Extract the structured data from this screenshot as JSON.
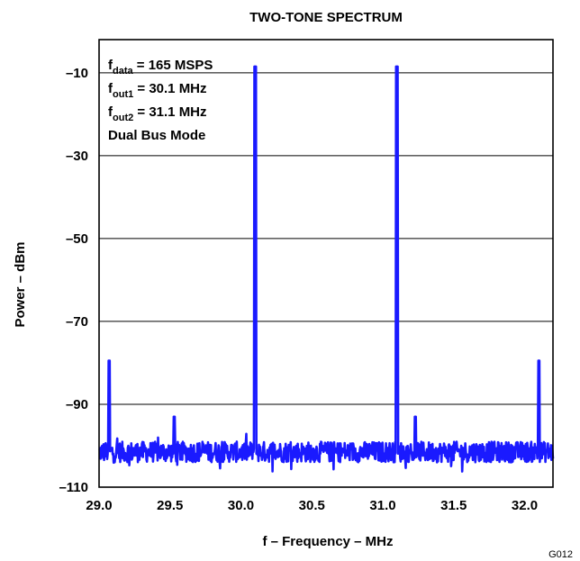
{
  "chart_data": {
    "type": "line",
    "title": "TWO-TONE SPECTRUM",
    "xlabel": "f – Frequency – MHz",
    "ylabel": "Power – dBm",
    "figure_id": "G012",
    "xlim": [
      29.0,
      32.2
    ],
    "ylim": [
      -110,
      -2
    ],
    "x_ticks": [
      29.0,
      29.5,
      30.0,
      30.5,
      31.0,
      31.5,
      32.0
    ],
    "x_tick_labels": [
      "29.0",
      "29.5",
      "30.0",
      "30.5",
      "31.0",
      "31.5",
      "32.0"
    ],
    "y_ticks": [
      -10,
      -30,
      -50,
      -70,
      -90,
      -110
    ],
    "y_tick_labels": [
      "–10",
      "–30",
      "–50",
      "–70",
      "–90",
      "–110"
    ],
    "grid": {
      "horizontal": true,
      "vertical": false
    },
    "line_color": "#1a1aff",
    "annotations": [
      {
        "main": "f",
        "sub": "data",
        "rest": " = 165 MSPS"
      },
      {
        "main": "f",
        "sub": "out1",
        "rest": " = 30.1 MHz"
      },
      {
        "main": "f",
        "sub": "out2",
        "rest": " = 31.1 MHz"
      },
      {
        "main": "Dual Bus Mode",
        "sub": "",
        "rest": ""
      }
    ],
    "series": [
      {
        "noise_floor_dbm": -101.5,
        "noise_spread_db": 2.5,
        "peaks": [
          {
            "x": 29.07,
            "y": -79.5
          },
          {
            "x": 29.53,
            "y": -93
          },
          {
            "x": 30.1,
            "y": -8.5
          },
          {
            "x": 31.1,
            "y": -8.5
          },
          {
            "x": 31.23,
            "y": -93
          },
          {
            "x": 32.1,
            "y": -79.5
          }
        ]
      }
    ]
  }
}
